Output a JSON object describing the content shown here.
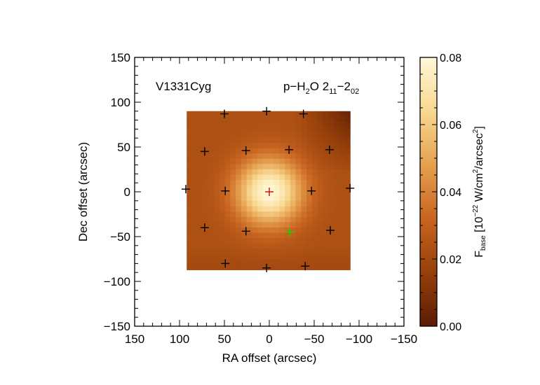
{
  "chart_data": {
    "type": "heatmap",
    "title_left": "V1331Cyg",
    "title_right": {
      "prefix": "p−H",
      "sub1": "2",
      "mid": "O 2",
      "sub2": "11",
      "dash": "−2",
      "sub3": "02"
    },
    "xlabel": "RA offset (arcsec)",
    "ylabel": "Dec offset (arcsec)",
    "xlim": [
      150,
      -150
    ],
    "ylim": [
      -150,
      150
    ],
    "xticks": [
      150,
      100,
      50,
      0,
      -50,
      -100,
      -150
    ],
    "xtick_labels": [
      "150",
      "100",
      "50",
      "0",
      "−50",
      "−100",
      "−150"
    ],
    "yticks": [
      150,
      100,
      50,
      0,
      -50,
      -100,
      -150
    ],
    "ytick_labels": [
      "150",
      "100",
      "50",
      "0",
      "−50",
      "−100",
      "−150"
    ],
    "image_extent": {
      "ra": [
        92,
        -90
      ],
      "dec": [
        -87,
        90
      ]
    },
    "peak": {
      "ra": 0,
      "dec": 0,
      "value": 0.08
    },
    "background_value": 0.023,
    "colorbar": {
      "min": 0.0,
      "max": 0.08,
      "ticks": [
        "0.00",
        "0.02",
        "0.04",
        "0.06",
        "0.08"
      ],
      "label": {
        "main": "F",
        "sub": "base",
        "open": " [10",
        "exp1": "−22",
        "mid": " W/cm",
        "exp2": "2",
        "mid2": "/arcsec",
        "exp3": "2",
        "close": "]"
      }
    },
    "spaxels": [
      {
        "ra": 0,
        "dec": 0,
        "color": "#e00000"
      },
      {
        "ra": -23,
        "dec": -45,
        "color": "#00e000"
      },
      {
        "ra": 3,
        "dec": 90,
        "color": "#000000"
      },
      {
        "ra": 50,
        "dec": 87,
        "color": "#000000"
      },
      {
        "ra": -38,
        "dec": 87,
        "color": "#000000"
      },
      {
        "ra": 72,
        "dec": 45,
        "color": "#000000"
      },
      {
        "ra": 26,
        "dec": 46,
        "color": "#000000"
      },
      {
        "ra": -22,
        "dec": 47,
        "color": "#000000"
      },
      {
        "ra": -67,
        "dec": 47,
        "color": "#000000"
      },
      {
        "ra": 93,
        "dec": 3,
        "color": "#000000"
      },
      {
        "ra": 49,
        "dec": 1,
        "color": "#000000"
      },
      {
        "ra": -47,
        "dec": 1,
        "color": "#000000"
      },
      {
        "ra": -90,
        "dec": 4,
        "color": "#000000"
      },
      {
        "ra": 72,
        "dec": -40,
        "color": "#000000"
      },
      {
        "ra": 26,
        "dec": -44,
        "color": "#000000"
      },
      {
        "ra": -68,
        "dec": -43,
        "color": "#000000"
      },
      {
        "ra": 49,
        "dec": -80,
        "color": "#000000"
      },
      {
        "ra": 3,
        "dec": -85,
        "color": "#000000"
      },
      {
        "ra": -40,
        "dec": -83,
        "color": "#000000"
      }
    ]
  }
}
